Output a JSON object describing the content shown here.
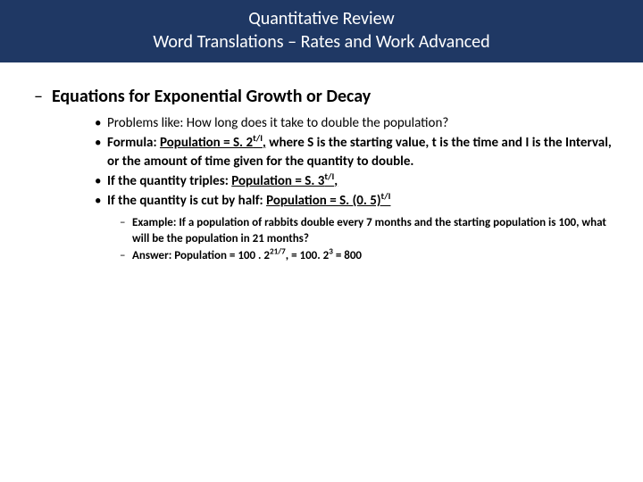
{
  "header": {
    "line1": "Quantitative Review",
    "line2": "Word Translations – Rates and Work Advanced",
    "bg": "#1f3864",
    "fg": "#ffffff",
    "fontsize": 20
  },
  "section": {
    "dash": "–",
    "title": "Equations for Exponential Growth or Decay",
    "title_fontsize": 20
  },
  "bullets": {
    "fontsize": 15,
    "marker": "•",
    "b1": " Problems like: How long does it take to double the population?",
    "b2_pre": "Formula: ",
    "b2_formula_a": "Population = S. 2",
    "b2_formula_sup": "t/I",
    "b2_formula_comma": ",",
    "b2_after": " where S is the starting value, t is the time and I is the Interval, or the amount of time given for the quantity to double.",
    "b3_pre": "If the quantity triples: ",
    "b3_formula_a": "Population = S. 3",
    "b3_formula_sup": "t/I",
    "b3_formula_comma": ",",
    "b4_pre": "If the quantity is cut by half: ",
    "b4_formula_a": "Population = S. (0. 5)",
    "b4_formula_sup": "t/I"
  },
  "subs": {
    "fontsize": 13,
    "marker": "–",
    "s1": "Example: If a population of rabbits double every 7 months and the starting population  is 100, what will be the population in 21 months?",
    "s2_pre": "Answer: Population = 100 .  2",
    "s2_sup1": "21/7",
    "s2_mid": ", = 100. 2",
    "s2_sup2": "3",
    "s2_end": " = 800"
  }
}
